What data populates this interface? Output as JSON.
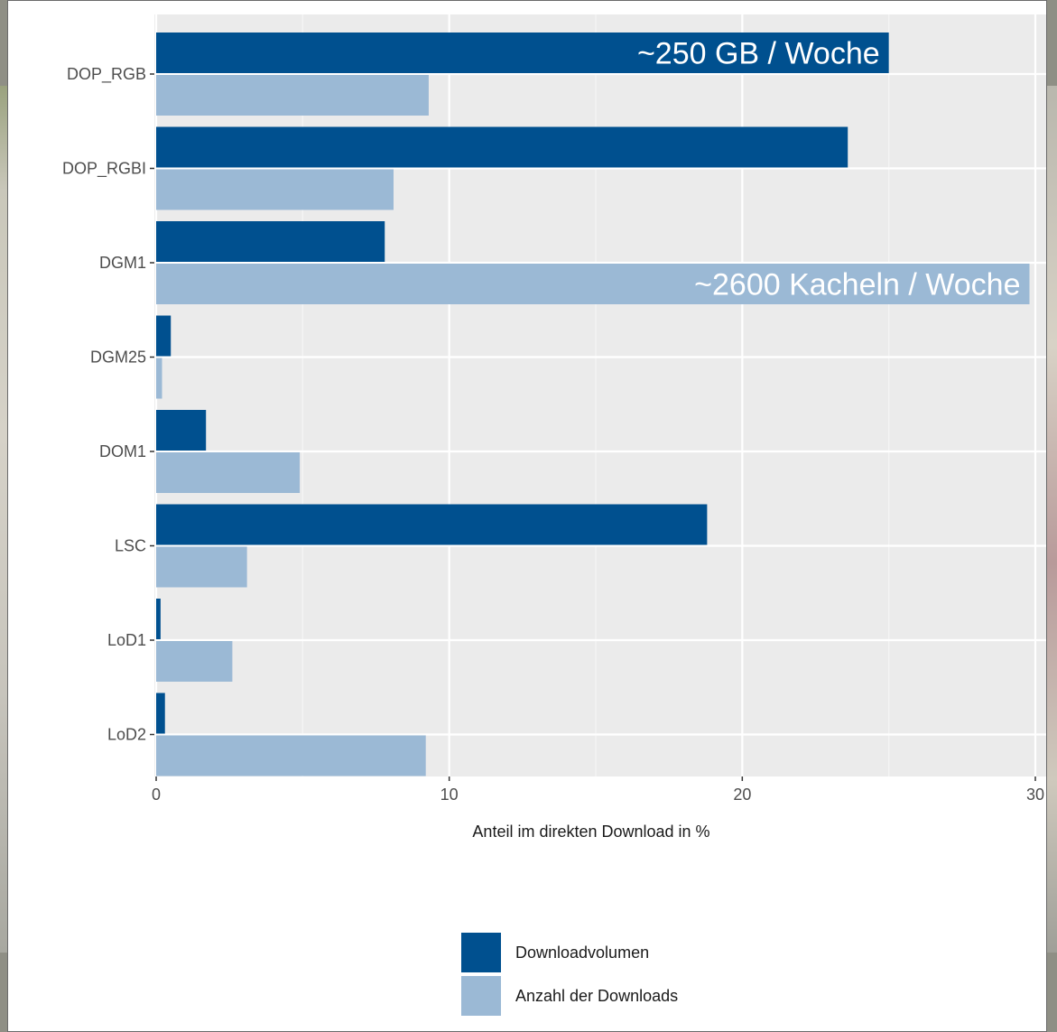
{
  "chart_data": {
    "type": "bar",
    "orientation": "horizontal",
    "categories": [
      "DOP_RGB",
      "DOP_RGBI",
      "DGM1",
      "DGM25",
      "DOM1",
      "LSC",
      "LoD1",
      "LoD2"
    ],
    "series": [
      {
        "name": "Downloadvolumen",
        "color": "#00508f",
        "values": [
          25.0,
          23.6,
          7.8,
          0.5,
          1.7,
          18.8,
          0.15,
          0.3
        ]
      },
      {
        "name": "Anzahl der Downloads",
        "color": "#9bb9d5",
        "values": [
          9.3,
          8.1,
          29.8,
          0.2,
          4.9,
          3.1,
          2.6,
          9.2
        ]
      }
    ],
    "xlabel": "Anteil im direkten Download in %",
    "xlim": [
      0,
      30
    ],
    "xticks": [
      0,
      10,
      20,
      30
    ],
    "grid": true,
    "panel_background": "#ebebeb",
    "legend_position": "bottom",
    "annotations": [
      {
        "text": "~250 GB / Woche",
        "category": "DOP_RGB",
        "series": "Downloadvolumen"
      },
      {
        "text": "~2600 Kacheln / Woche",
        "category": "DGM1",
        "series": "Anzahl der Downloads"
      }
    ]
  }
}
